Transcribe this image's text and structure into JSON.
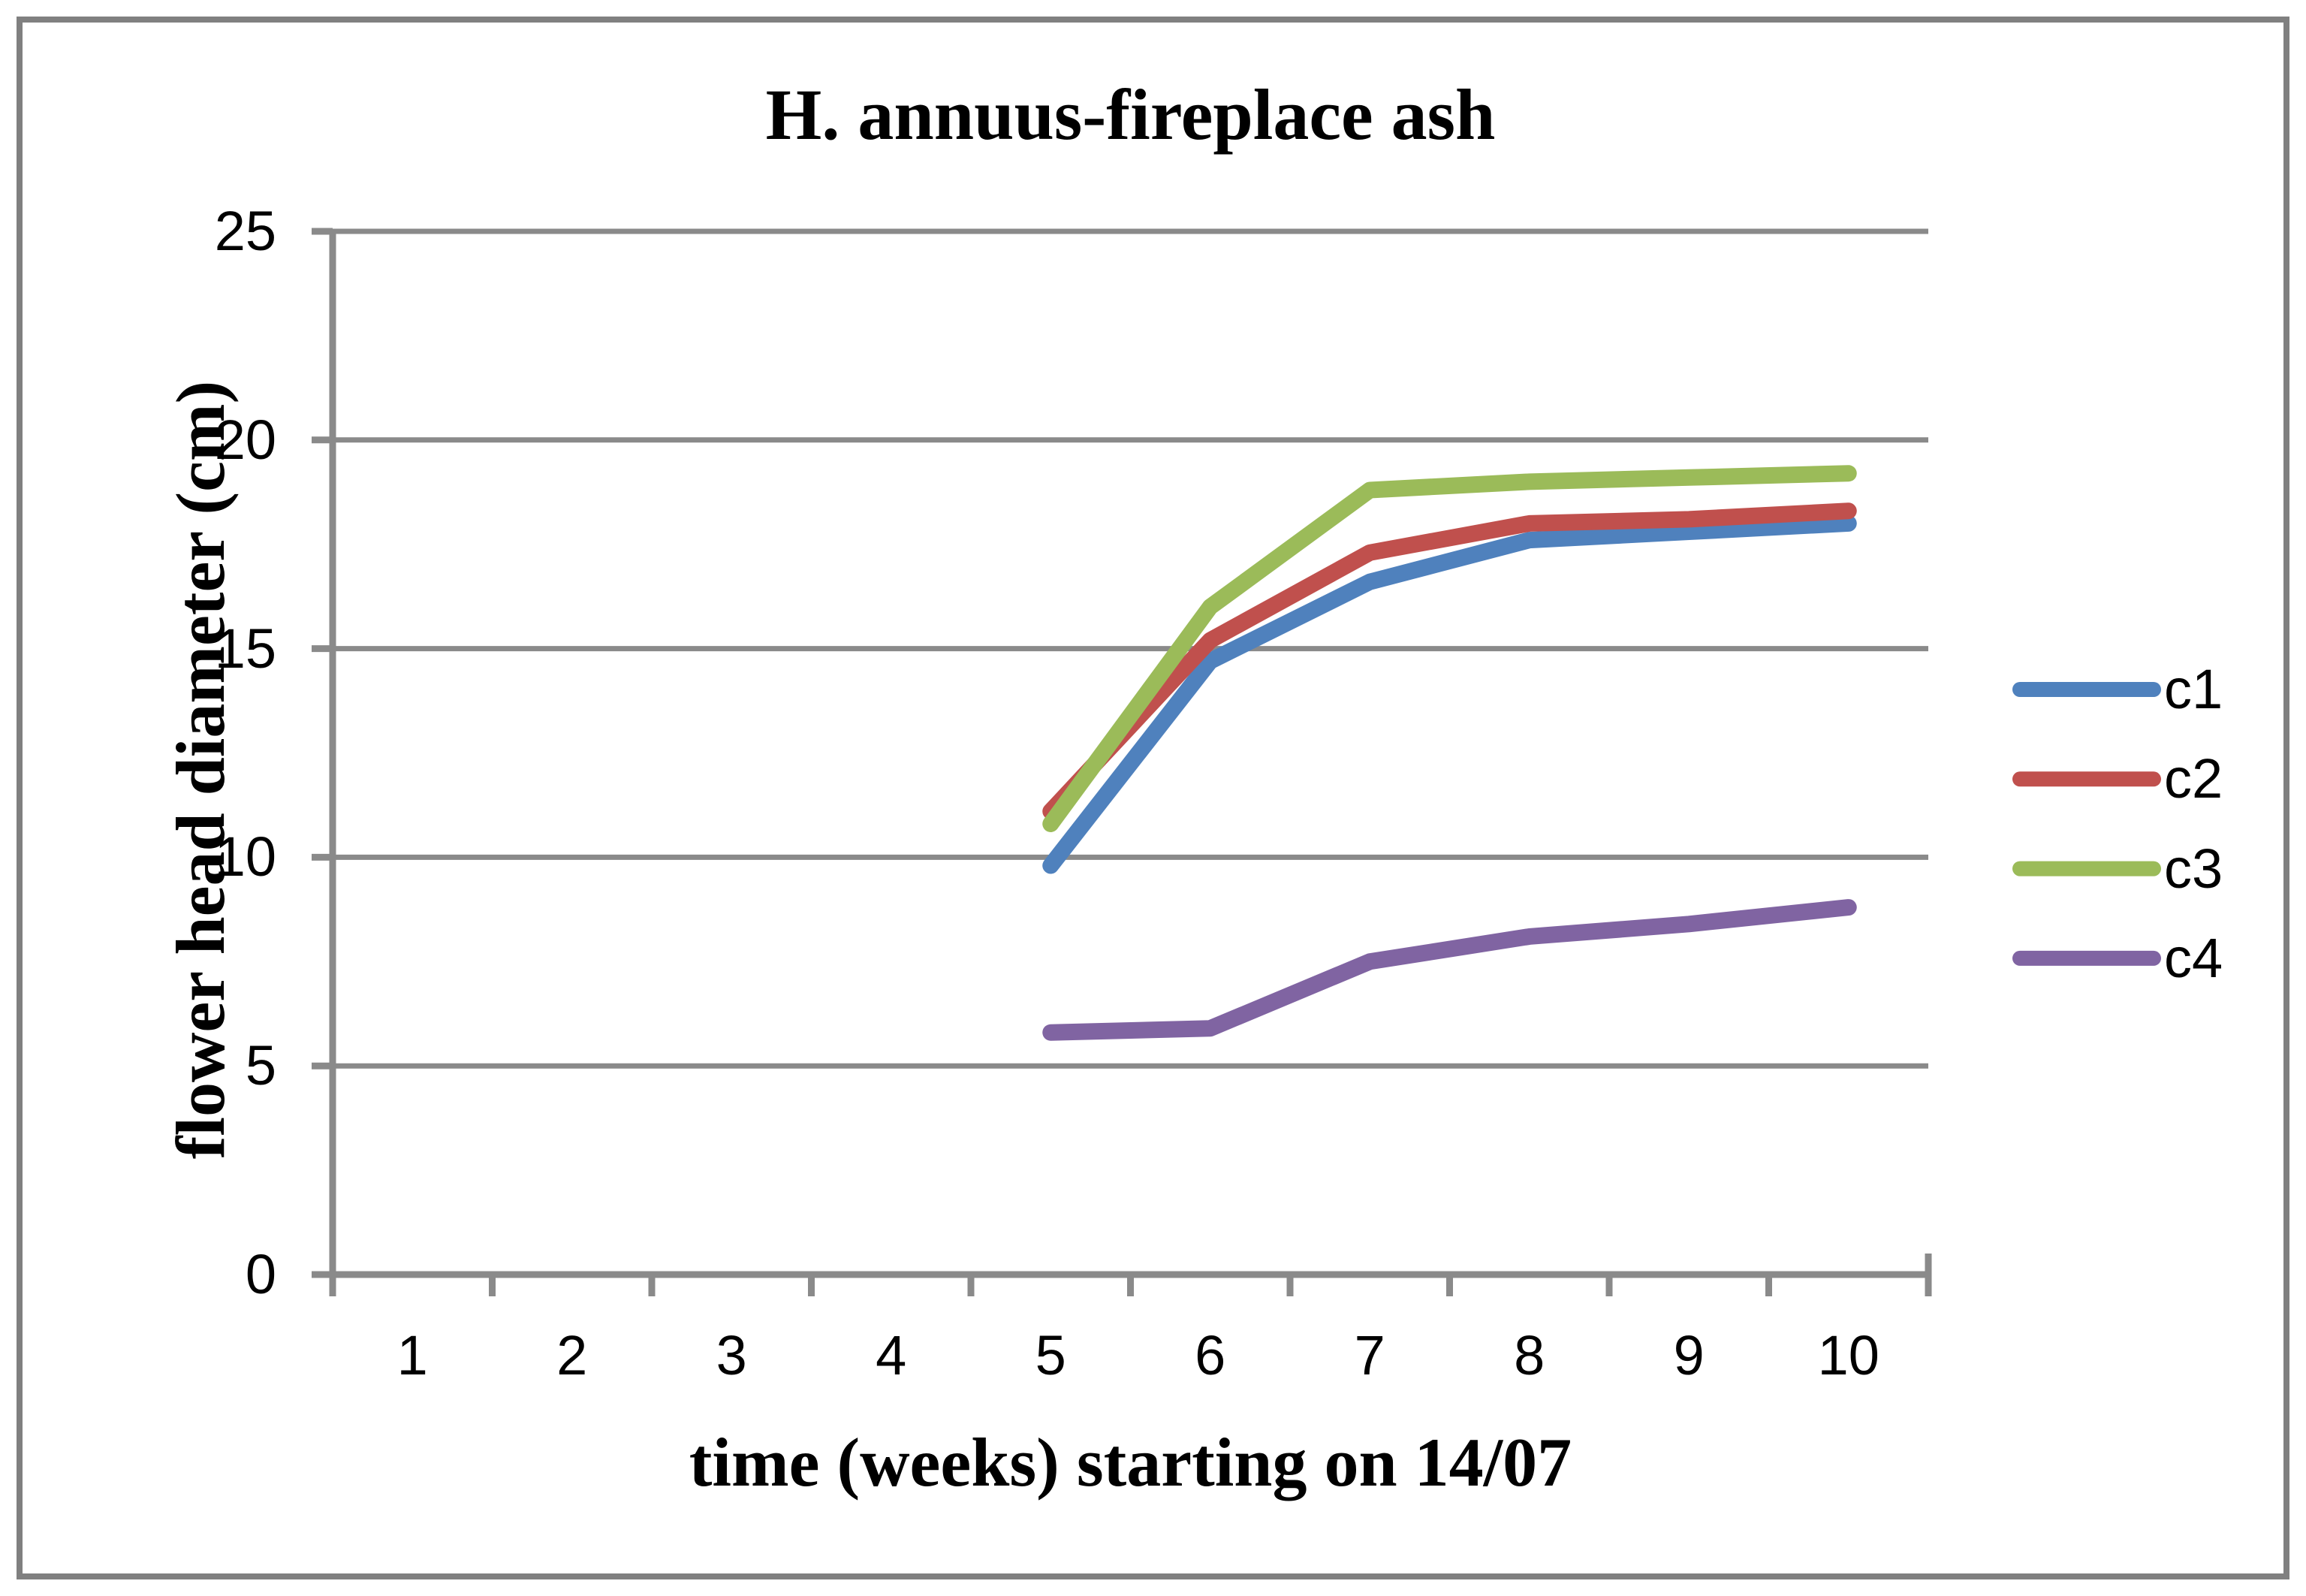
{
  "chart_data": {
    "type": "line",
    "title": "H. annuus-fireplace ash",
    "xlabel": "time (weeks) starting on 14/07",
    "ylabel": "flower head diameter (cm)",
    "x_categories": 10,
    "x_tick_labels": [
      "1",
      "2",
      "3",
      "4",
      "5",
      "6",
      "7",
      "8",
      "9",
      "10"
    ],
    "y_ticks": [
      0,
      5,
      10,
      15,
      20,
      25
    ],
    "ylim": [
      0,
      25
    ],
    "grid": "horizontal",
    "legend_position": "right",
    "axis_color": "#8A8A8A",
    "border_color": "#808080",
    "series": [
      {
        "name": "c1",
        "color": "#4F81BD",
        "x": [
          5,
          6,
          7,
          8,
          9,
          10
        ],
        "values": [
          9.8,
          14.7,
          16.6,
          17.6,
          17.8,
          18.0
        ]
      },
      {
        "name": "c2",
        "color": "#C0504D",
        "x": [
          5,
          6,
          7,
          8,
          9,
          10
        ],
        "values": [
          11.1,
          15.2,
          17.3,
          18.0,
          18.1,
          18.3
        ]
      },
      {
        "name": "c3",
        "color": "#9BBB59",
        "x": [
          5,
          6,
          7,
          8,
          9,
          10
        ],
        "values": [
          10.8,
          16.0,
          18.8,
          19.0,
          19.1,
          19.2
        ]
      },
      {
        "name": "c4",
        "color": "#8064A2",
        "x": [
          5,
          6,
          7,
          8,
          9,
          10
        ],
        "values": [
          5.8,
          5.9,
          7.5,
          8.1,
          8.4,
          8.8
        ]
      }
    ]
  }
}
